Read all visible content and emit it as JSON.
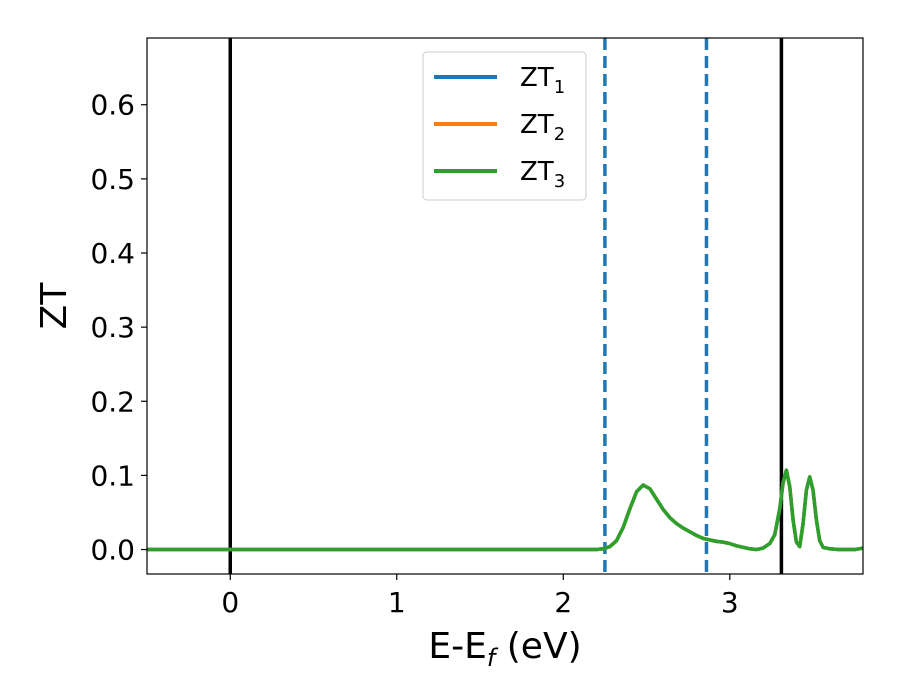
{
  "chart_data": {
    "type": "line",
    "xlabel": "E-E",
    "xlabel_sub": "f",
    "xlabel_unit": " (eV)",
    "ylabel": "ZT",
    "xlim": [
      -0.5,
      3.8
    ],
    "ylim": [
      -0.033,
      0.69
    ],
    "xticks": [
      0,
      1,
      2,
      3
    ],
    "xtick_labels": [
      "0",
      "1",
      "2",
      "3"
    ],
    "yticks": [
      0.0,
      0.1,
      0.2,
      0.3,
      0.4,
      0.5,
      0.6
    ],
    "ytick_labels": [
      "0.0",
      "0.1",
      "0.2",
      "0.3",
      "0.4",
      "0.5",
      "0.6"
    ],
    "grid": false,
    "legend_position": "top-center",
    "vlines_solid": [
      0.0,
      3.31
    ],
    "vlines_dashed": [
      2.25,
      2.86
    ],
    "vline_solid_color": "#000000",
    "vline_dashed_color": "#1f77b4",
    "series": [
      {
        "name": "ZT",
        "sub": "1",
        "color": "#1f77b4",
        "x": [
          -0.5,
          2.2,
          2.24,
          2.28,
          2.32,
          2.36,
          2.4,
          2.44,
          2.48,
          2.52,
          2.56,
          2.6,
          2.64,
          2.68,
          2.72,
          2.76,
          2.8,
          2.84,
          2.88,
          2.92,
          2.96,
          3.0,
          3.04,
          3.08,
          3.12,
          3.16,
          3.2,
          3.24,
          3.27,
          3.3,
          3.32,
          3.34,
          3.36,
          3.38,
          3.4,
          3.42,
          3.44,
          3.46,
          3.48,
          3.5,
          3.52,
          3.54,
          3.56,
          3.6,
          3.65,
          3.7,
          3.75,
          3.8
        ],
        "y": [
          0.0,
          0.0,
          0.001,
          0.004,
          0.012,
          0.03,
          0.055,
          0.078,
          0.087,
          0.082,
          0.068,
          0.054,
          0.043,
          0.035,
          0.029,
          0.024,
          0.019,
          0.015,
          0.013,
          0.011,
          0.01,
          0.008,
          0.005,
          0.003,
          0.001,
          0.0,
          0.002,
          0.008,
          0.02,
          0.055,
          0.09,
          0.107,
          0.085,
          0.04,
          0.01,
          0.004,
          0.035,
          0.08,
          0.098,
          0.08,
          0.04,
          0.012,
          0.003,
          0.001,
          0.0,
          0.0,
          0.0,
          0.002
        ]
      },
      {
        "name": "ZT",
        "sub": "2",
        "color": "#ff7f0e",
        "x": [
          -0.5,
          2.2,
          2.24,
          2.28,
          2.32,
          2.36,
          2.4,
          2.44,
          2.48,
          2.52,
          2.56,
          2.6,
          2.64,
          2.68,
          2.72,
          2.76,
          2.8,
          2.84,
          2.88,
          2.92,
          2.96,
          3.0,
          3.04,
          3.08,
          3.12,
          3.16,
          3.2,
          3.24,
          3.27,
          3.3,
          3.32,
          3.34,
          3.36,
          3.38,
          3.4,
          3.42,
          3.44,
          3.46,
          3.48,
          3.5,
          3.52,
          3.54,
          3.56,
          3.6,
          3.65,
          3.7,
          3.75,
          3.8
        ],
        "y": [
          0.0,
          0.0,
          0.001,
          0.004,
          0.012,
          0.03,
          0.055,
          0.078,
          0.087,
          0.082,
          0.068,
          0.054,
          0.043,
          0.035,
          0.029,
          0.024,
          0.019,
          0.015,
          0.013,
          0.011,
          0.01,
          0.008,
          0.005,
          0.003,
          0.001,
          0.0,
          0.002,
          0.008,
          0.02,
          0.055,
          0.09,
          0.107,
          0.085,
          0.04,
          0.01,
          0.004,
          0.035,
          0.08,
          0.098,
          0.08,
          0.04,
          0.012,
          0.003,
          0.001,
          0.0,
          0.0,
          0.0,
          0.002
        ]
      },
      {
        "name": "ZT",
        "sub": "3",
        "color": "#2ca02c",
        "x": [
          -0.5,
          2.2,
          2.24,
          2.28,
          2.32,
          2.36,
          2.4,
          2.44,
          2.48,
          2.52,
          2.56,
          2.6,
          2.64,
          2.68,
          2.72,
          2.76,
          2.8,
          2.84,
          2.88,
          2.92,
          2.96,
          3.0,
          3.04,
          3.08,
          3.12,
          3.16,
          3.2,
          3.24,
          3.27,
          3.3,
          3.32,
          3.34,
          3.36,
          3.38,
          3.4,
          3.42,
          3.44,
          3.46,
          3.48,
          3.5,
          3.52,
          3.54,
          3.56,
          3.6,
          3.65,
          3.7,
          3.75,
          3.8
        ],
        "y": [
          0.0,
          0.0,
          0.001,
          0.004,
          0.012,
          0.03,
          0.055,
          0.078,
          0.087,
          0.082,
          0.068,
          0.054,
          0.043,
          0.035,
          0.029,
          0.024,
          0.019,
          0.015,
          0.013,
          0.011,
          0.01,
          0.008,
          0.005,
          0.003,
          0.001,
          0.0,
          0.002,
          0.008,
          0.02,
          0.055,
          0.09,
          0.107,
          0.085,
          0.04,
          0.01,
          0.004,
          0.035,
          0.08,
          0.098,
          0.08,
          0.04,
          0.012,
          0.003,
          0.001,
          0.0,
          0.0,
          0.0,
          0.002
        ]
      }
    ]
  }
}
